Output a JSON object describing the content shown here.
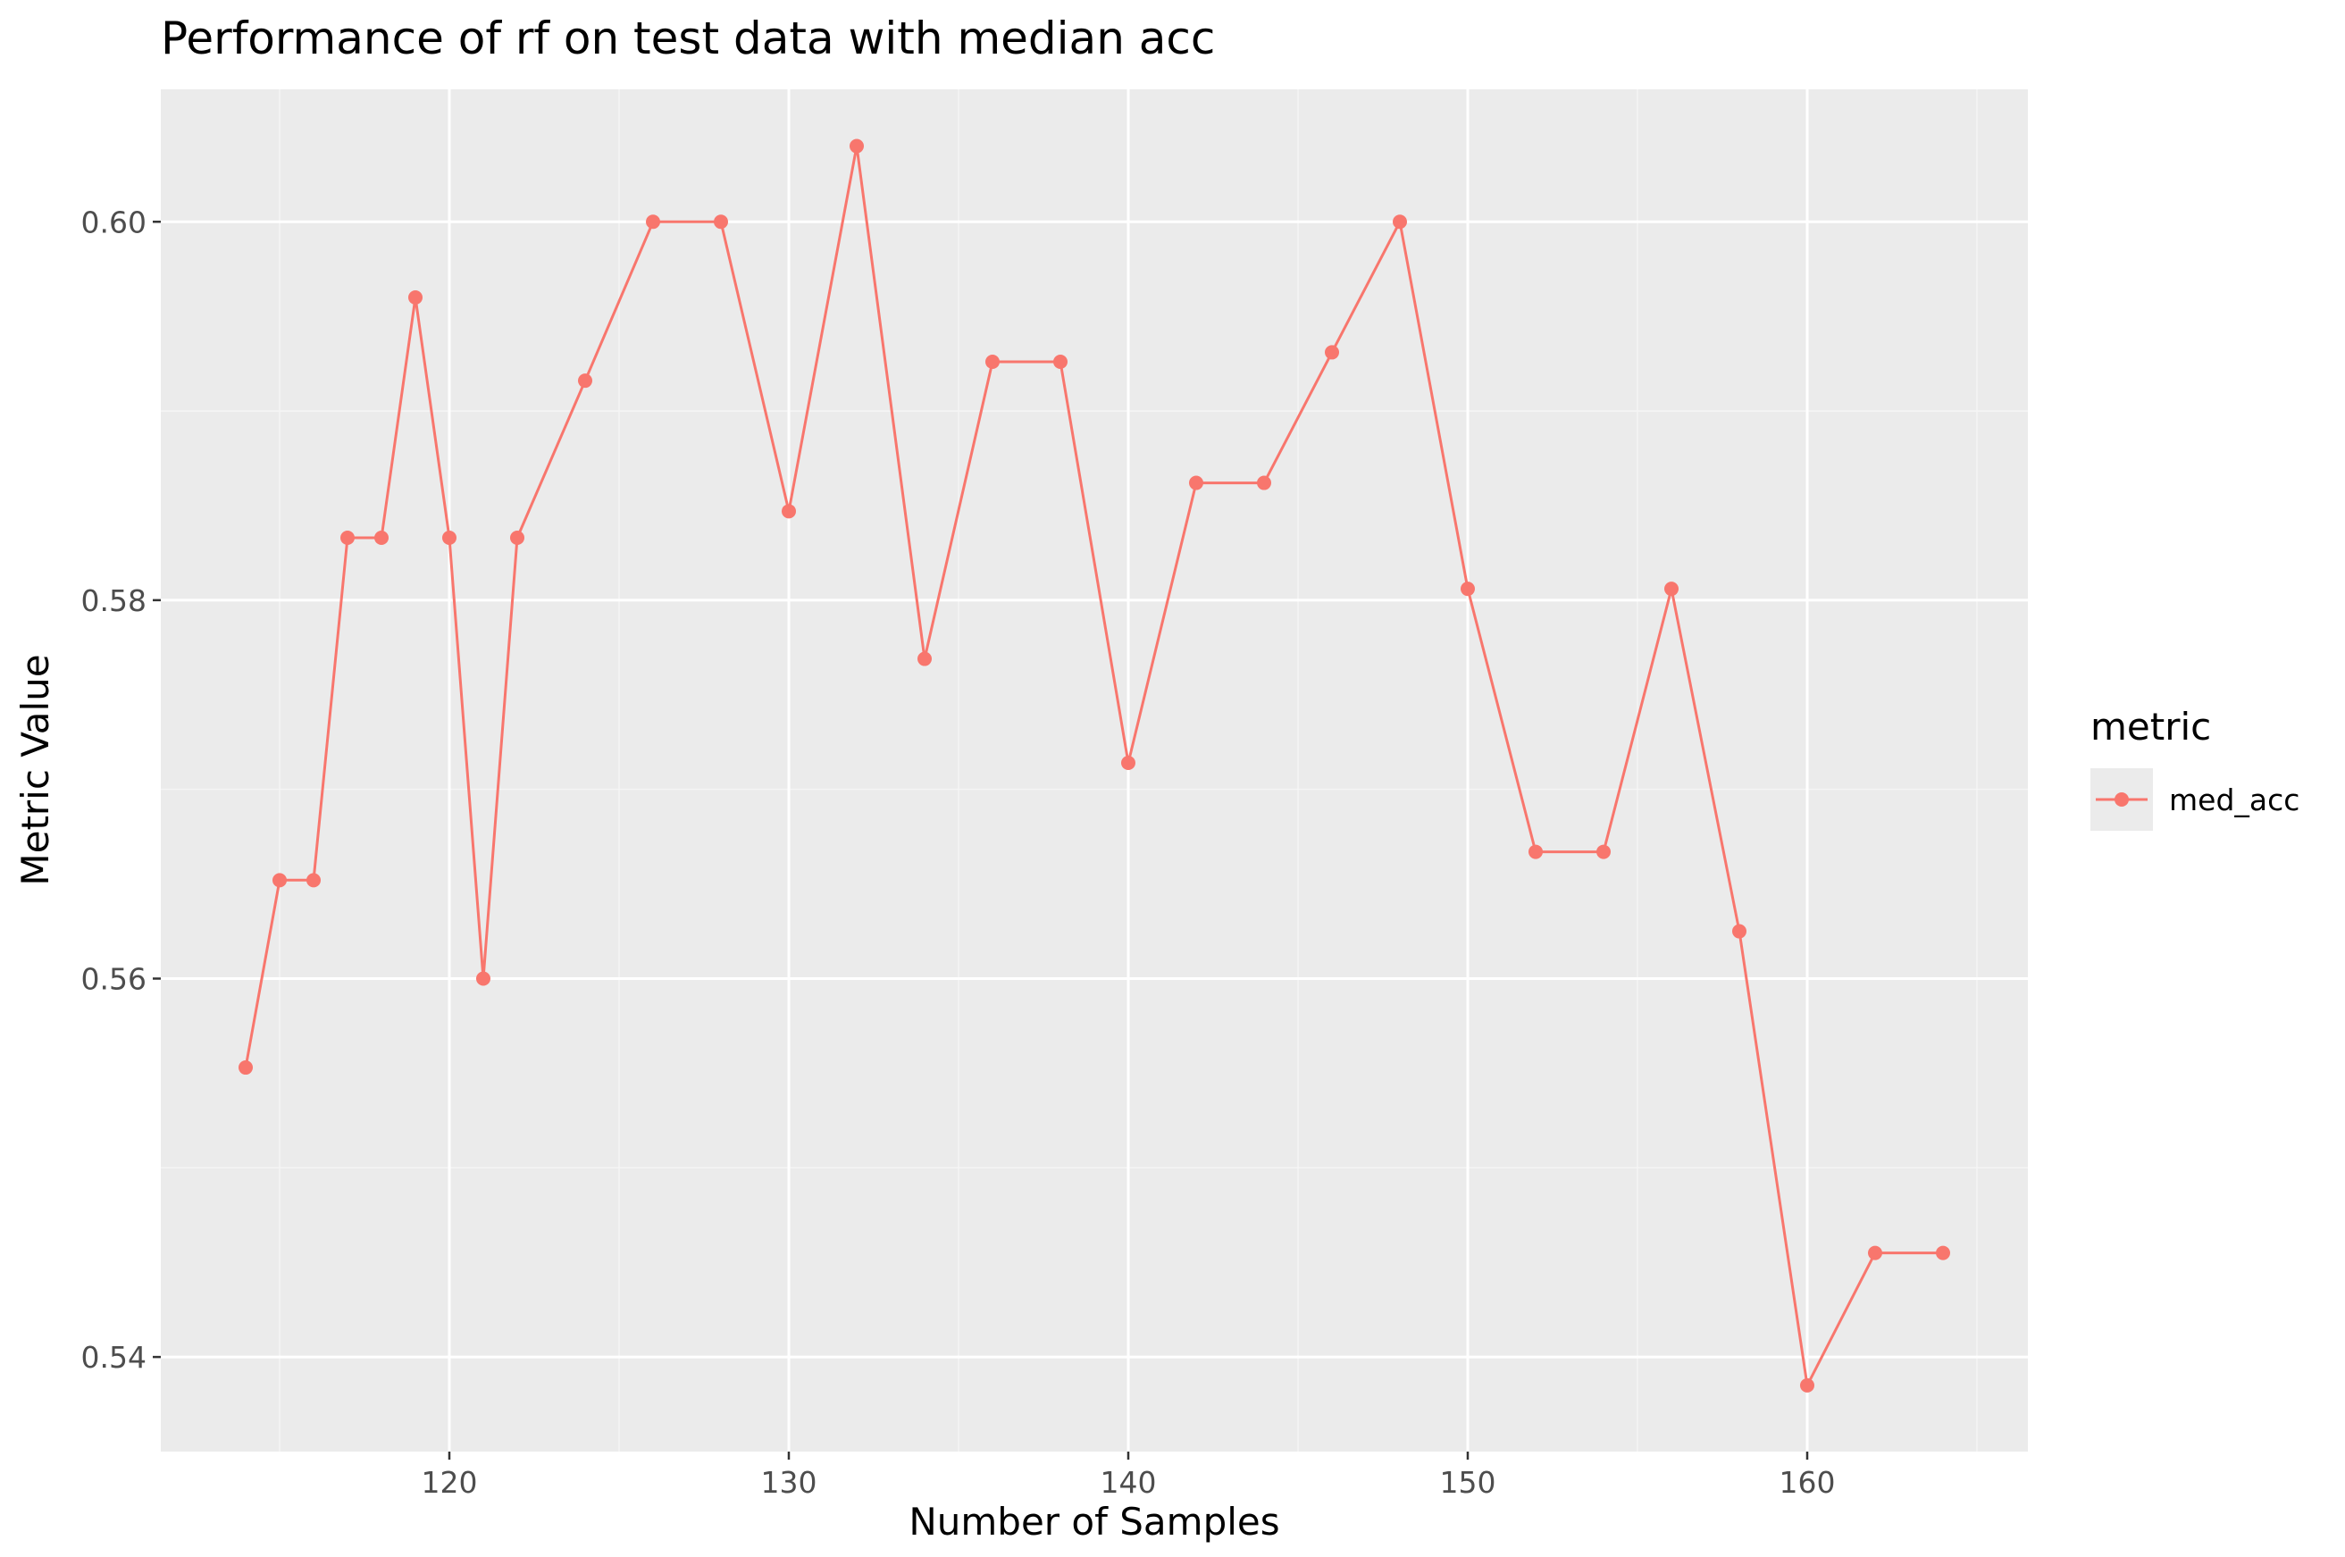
{
  "chart_data": {
    "type": "line",
    "title": "Performance of rf on test data with median acc",
    "xlabel": "Number of Samples",
    "ylabel": "Metric Value",
    "xlim": [
      111.5,
      166.5
    ],
    "ylim": [
      0.535,
      0.607
    ],
    "x_ticks": [
      120,
      130,
      140,
      150,
      160
    ],
    "y_ticks": [
      0.54,
      0.56,
      0.58,
      0.6
    ],
    "x_tick_labels": [
      "120",
      "130",
      "140",
      "150",
      "160"
    ],
    "y_tick_labels": [
      "0.54",
      "0.56",
      "0.58",
      "0.60"
    ],
    "grid": true,
    "legend": {
      "title": "metric",
      "position": "right",
      "entries": [
        "med_acc"
      ]
    },
    "series": [
      {
        "name": "med_acc",
        "color": "#F8766D",
        "x": [
          114,
          115,
          116,
          117,
          118,
          119,
          120,
          121,
          122,
          124,
          126,
          128,
          130,
          132,
          134,
          136,
          138,
          140,
          142,
          144,
          146,
          148,
          150,
          152,
          154,
          156,
          158,
          160,
          162,
          164
        ],
        "y": [
          0.5553,
          0.5652,
          0.5652,
          0.5833,
          0.5833,
          0.596,
          0.5833,
          0.56,
          0.5833,
          0.5916,
          0.6,
          0.6,
          0.5847,
          0.604,
          0.5769,
          0.5926,
          0.5926,
          0.5714,
          0.5862,
          0.5862,
          0.5931,
          0.6,
          0.5806,
          0.5667,
          0.5667,
          0.5806,
          0.5625,
          0.5385,
          0.5455,
          0.5455
        ]
      }
    ]
  },
  "colors": {
    "panel_background": "#EBEBEB",
    "grid_major": "#FFFFFF",
    "grid_minor": "#F5F5F5",
    "series": "#F8766D"
  }
}
